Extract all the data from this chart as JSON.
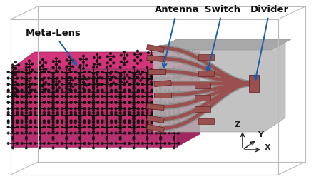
{
  "background_color": "#ffffff",
  "box_color": "#bbbbbb",
  "metalens_top_color": "#d4357a",
  "metalens_front_color": "#c0306a",
  "metalens_side_color": "#aa2060",
  "metalens_bottom_color": "#b02868",
  "circuit_bg_color": "#c0c0c0",
  "waveguide_fill": "#9b5050",
  "waveguide_edge": "#7a3030",
  "cross_color": "#111111",
  "labels": {
    "antenna": "Antenna",
    "switch": "Switch",
    "divider": "Divider",
    "metalens": "Meta-Lens"
  },
  "arrow_color": "#1a5fa8",
  "axis_color": "#222222",
  "figsize": [
    4.5,
    2.65
  ],
  "dpi": 100
}
